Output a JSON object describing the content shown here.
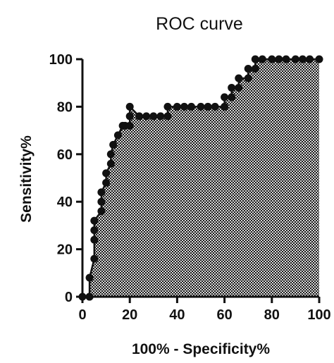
{
  "chart_data": {
    "type": "area",
    "title": "ROC curve",
    "xlabel": "100% - Specificity%",
    "ylabel": "Sensitivity%",
    "xlim": [
      0,
      100
    ],
    "ylim": [
      0,
      100
    ],
    "xticks": [
      "0",
      "20",
      "40",
      "60",
      "80",
      "100"
    ],
    "yticks": [
      "0",
      "20",
      "40",
      "60",
      "80",
      "100"
    ],
    "grid": false,
    "legend": "none",
    "colors": {
      "line": "#111111",
      "marker": "#111111",
      "fill_pattern": "checkerboard",
      "fill_dark": "#1a1a1a",
      "fill_light": "#d8d8d8"
    },
    "series": [
      {
        "x": [
          0,
          3,
          3,
          3,
          5,
          5,
          5,
          5,
          8,
          8,
          8,
          10,
          10,
          12,
          12,
          13,
          15,
          17,
          18,
          20,
          20,
          20,
          24,
          27,
          30,
          33,
          36,
          36,
          40,
          43,
          46,
          50,
          53,
          56,
          60,
          60,
          63,
          63,
          66,
          66,
          70,
          70,
          73,
          73,
          76,
          80,
          83,
          86,
          90,
          93,
          96,
          100
        ],
        "y": [
          0,
          0,
          0,
          8,
          16,
          24,
          28,
          32,
          36,
          40,
          44,
          48,
          52,
          56,
          60,
          64,
          68,
          72,
          72,
          72,
          76,
          80,
          76,
          76,
          76,
          76,
          76,
          80,
          80,
          80,
          80,
          80,
          80,
          80,
          80,
          84,
          84,
          88,
          88,
          92,
          92,
          96,
          96,
          100,
          100,
          100,
          100,
          100,
          100,
          100,
          100,
          100
        ]
      }
    ]
  }
}
